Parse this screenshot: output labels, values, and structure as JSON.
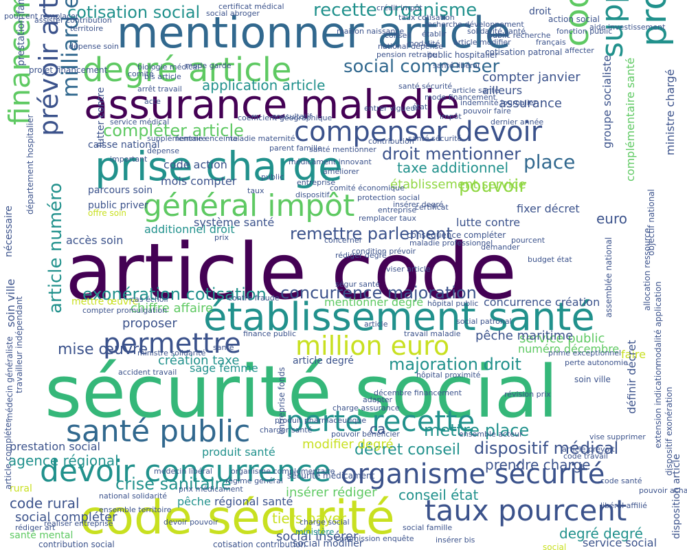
{
  "palette": {
    "dark_purple": "#440154",
    "indigo": "#3b528b",
    "blue": "#31688e",
    "teal": "#21918c",
    "green": "#35b779",
    "light_green": "#5ec962",
    "lime": "#90d743",
    "yellow_green": "#c8e020",
    "background": "#ffffff"
  },
  "words": [
    {
      "text": "article code",
      "color": "#440154"
    },
    {
      "text": "sécurité social",
      "color": "#35b779"
    },
    {
      "text": "mentionner article",
      "color": "#31688e"
    },
    {
      "text": "assurance maladie",
      "color": "#440154"
    },
    {
      "text": "code sécurité",
      "color": "#c8e020"
    },
    {
      "text": "établissement santé",
      "color": "#21918c"
    },
    {
      "text": "prise charge",
      "color": "#21918c"
    },
    {
      "text": "degré article",
      "color": "#5ec962"
    },
    {
      "text": "organisme sécurité",
      "color": "#3b528b"
    },
    {
      "text": "devoir concurrence",
      "color": "#21918c"
    },
    {
      "text": "santé public",
      "color": "#31688e"
    },
    {
      "text": "perte recette",
      "color": "#21918c"
    },
    {
      "text": "général impôt",
      "color": "#5ec962"
    },
    {
      "text": "compenser devoir",
      "color": "#3b528b"
    },
    {
      "text": "permettre",
      "color": "#3b528b"
    },
    {
      "text": "million euro",
      "color": "#c8e020"
    },
    {
      "text": "taux pourcent",
      "color": "#3b528b"
    },
    {
      "text": "professionnel santé",
      "color": "#21918c"
    },
    {
      "text": "code général",
      "color": "#5ec962"
    },
    {
      "text": "supprimer article",
      "color": "#21918c"
    },
    {
      "text": "financement sécurité",
      "color": "#5ec962"
    },
    {
      "text": "prévoir article",
      "color": "#3b528b"
    },
    {
      "text": "milliard euro",
      "color": "#31688e"
    },
    {
      "text": "mettre place",
      "color": "#21918c"
    },
    {
      "text": "exonération cotisation",
      "color": "#21918c"
    },
    {
      "text": "concurrence majoration",
      "color": "#3b528b"
    },
    {
      "text": "majoration droit",
      "color": "#21918c"
    },
    {
      "text": "dispositif médical",
      "color": "#3b528b"
    },
    {
      "text": "crise sanitaire",
      "color": "#21918c"
    },
    {
      "text": "agence régional",
      "color": "#21918c"
    },
    {
      "text": "recette organisme",
      "color": "#21918c"
    },
    {
      "text": "cotisation social",
      "color": "#21918c"
    },
    {
      "text": "social compenser",
      "color": "#31688e"
    },
    {
      "text": "remettre parlement",
      "color": "#3b528b"
    },
    {
      "text": "droit mentionner",
      "color": "#3b528b"
    },
    {
      "text": "taxe additionnel",
      "color": "#21918c"
    },
    {
      "text": "compléter article",
      "color": "#5ec962"
    },
    {
      "text": "pouvoir",
      "color": "#90d743"
    },
    {
      "text": "place",
      "color": "#31688e"
    },
    {
      "text": "application article",
      "color": "#21918c"
    },
    {
      "text": "mise œuvre",
      "color": "#3b528b"
    },
    {
      "text": "décret conseil",
      "color": "#21918c"
    },
    {
      "text": "article numéro",
      "color": "#21918c"
    },
    {
      "text": "modifier degré",
      "color": "#c8e020"
    },
    {
      "text": "prestation social",
      "color": "#3b528b"
    },
    {
      "text": "produit santé",
      "color": "#21918c"
    },
    {
      "text": "degré degré",
      "color": "#21918c"
    },
    {
      "text": "conseil état",
      "color": "#21918c"
    },
    {
      "text": "insérer rédiger",
      "color": "#5ec962"
    },
    {
      "text": "prendre charge",
      "color": "#3b528b"
    },
    {
      "text": "tiers payer",
      "color": "#c8e020"
    },
    {
      "text": "code rural",
      "color": "#3b528b"
    },
    {
      "text": "social compléter",
      "color": "#3b528b"
    },
    {
      "text": "social insérer",
      "color": "#3b528b"
    },
    {
      "text": "social modifier",
      "color": "#3b528b"
    },
    {
      "text": "santé mental",
      "color": "#5ec962"
    },
    {
      "text": "rural",
      "color": "#c8e020"
    },
    {
      "text": "pêche",
      "color": "#21918c"
    },
    {
      "text": "régional santé",
      "color": "#3b528b"
    },
    {
      "text": "création taxe",
      "color": "#21918c"
    },
    {
      "text": "sage femme",
      "color": "#21918c"
    },
    {
      "text": "proposer",
      "color": "#3b528b"
    },
    {
      "text": "chiffre affaire",
      "color": "#5ec962"
    },
    {
      "text": "service public",
      "color": "#5ec962"
    },
    {
      "text": "numéro décembre",
      "color": "#5ec962"
    },
    {
      "text": "mentionner degré",
      "color": "#5ec962"
    },
    {
      "text": "concurrence création",
      "color": "#3b528b"
    },
    {
      "text": "système santé",
      "color": "#3b528b"
    },
    {
      "text": "lutte contre",
      "color": "#3b528b"
    },
    {
      "text": "additionnel droit",
      "color": "#21918c"
    },
    {
      "text": "accès soin",
      "color": "#3b528b"
    },
    {
      "text": "fixer décret",
      "color": "#3b528b"
    },
    {
      "text": "établissement service",
      "color": "#90d743"
    },
    {
      "text": "mois compter",
      "color": "#3b528b"
    },
    {
      "text": "code action",
      "color": "#3b528b"
    },
    {
      "text": "caisse national",
      "color": "#3b528b"
    },
    {
      "text": "parcours soin",
      "color": "#3b528b"
    },
    {
      "text": "public priver",
      "color": "#3b528b"
    },
    {
      "text": "offre soin",
      "color": "#c8e020"
    },
    {
      "text": "compter janvier",
      "color": "#3b528b"
    },
    {
      "text": "ailleurs",
      "color": "#3b528b"
    },
    {
      "text": "assurance",
      "color": "#3b528b"
    },
    {
      "text": "faire",
      "color": "#c8e020"
    },
    {
      "text": "ca",
      "color": "#3b528b"
    },
    {
      "text": "euro",
      "color": "#3b528b"
    },
    {
      "text": "pêche maritime",
      "color": "#3b528b"
    },
    {
      "text": "nécessaire",
      "color": "#3b528b"
    },
    {
      "text": "prestation familial",
      "color": "#3b528b"
    },
    {
      "text": "ministre chargé",
      "color": "#3b528b"
    },
    {
      "text": "groupe socialiste",
      "color": "#3b528b"
    },
    {
      "text": "complémentaire santé",
      "color": "#5ec962"
    },
    {
      "text": "soin ville",
      "color": "#3b528b"
    },
    {
      "text": "article degré",
      "color": "#3b528b"
    },
    {
      "text": "mettre œuvre",
      "color": "#c8e020"
    },
    {
      "text": "sécurité médicament",
      "color": "#3b528b"
    },
    {
      "text": "cotisation contribution",
      "color": "#3b528b"
    },
    {
      "text": "contribution social",
      "color": "#3b528b"
    },
    {
      "text": "droit",
      "color": "#3b528b"
    },
    {
      "text": "social",
      "color": "#c8e020"
    },
    {
      "text": "ministère",
      "color": "#21918c"
    },
    {
      "text": "certificat médical",
      "color": "#3b528b"
    },
    {
      "text": "social abroger",
      "color": "#3b528b"
    },
    {
      "text": "crédit impôt",
      "color": "#3b528b"
    },
    {
      "text": "taux cotisation",
      "color": "#3b528b"
    },
    {
      "text": "recherche développement",
      "color": "#3b528b"
    },
    {
      "text": "action social",
      "color": "#3b528b"
    },
    {
      "text": "fonction public",
      "color": "#3b528b"
    },
    {
      "text": "territoire",
      "color": "#3b528b"
    },
    {
      "text": "dépense soin",
      "color": "#3b528b"
    },
    {
      "text": "maison naissance",
      "color": "#3b528b"
    },
    {
      "text": "public hospitalier",
      "color": "#3b528b"
    },
    {
      "text": "cotisation patronal",
      "color": "#3b528b"
    },
    {
      "text": "santé libéral",
      "color": "#3b528b"
    },
    {
      "text": "projet financement",
      "color": "#3b528b"
    },
    {
      "text": "arrêt travail",
      "color": "#3b528b"
    },
    {
      "text": "indemnité journalier",
      "color": "#3b528b"
    },
    {
      "text": "pouvoir faire",
      "color": "#3b528b"
    },
    {
      "text": "dernier année",
      "color": "#3b528b"
    },
    {
      "text": "service médical",
      "color": "#3b528b"
    },
    {
      "text": "femme enceinte",
      "color": "#3b528b"
    },
    {
      "text": "maladie maternité",
      "color": "#3b528b"
    },
    {
      "text": "parent famille",
      "color": "#3b528b"
    },
    {
      "text": "santé mentionner",
      "color": "#3b528b"
    },
    {
      "text": "médicament innovant",
      "color": "#3b528b"
    },
    {
      "text": "comité économique",
      "color": "#3b528b"
    },
    {
      "text": "entreprise",
      "color": "#3b528b"
    },
    {
      "text": "dispositif",
      "color": "#3b528b"
    },
    {
      "text": "protection social",
      "color": "#3b528b"
    },
    {
      "text": "insérer degré",
      "color": "#3b528b"
    },
    {
      "text": "remplacer taux",
      "color": "#3b528b"
    },
    {
      "text": "concerner",
      "color": "#3b528b"
    },
    {
      "text": "condition prévoir",
      "color": "#3b528b"
    },
    {
      "text": "maladie professionnel",
      "color": "#3b528b"
    },
    {
      "text": "conséquence compléter",
      "color": "#3b528b"
    },
    {
      "text": "viser article",
      "color": "#3b528b"
    },
    {
      "text": "budget état",
      "color": "#3b528b"
    },
    {
      "text": "rédiger degré",
      "color": "#3b528b"
    },
    {
      "text": "ségur santé",
      "color": "#3b528b"
    },
    {
      "text": "contre fraude",
      "color": "#3b528b"
    },
    {
      "text": "cas échoir",
      "color": "#3b528b"
    },
    {
      "text": "compter promulgation",
      "color": "#3b528b"
    },
    {
      "text": "hôpital public",
      "color": "#3b528b"
    },
    {
      "text": "social patronal",
      "color": "#3b528b"
    },
    {
      "text": "finance public",
      "color": "#3b528b"
    },
    {
      "text": "travail maladie",
      "color": "#3b528b"
    },
    {
      "text": "ministre solidarité",
      "color": "#3b528b"
    },
    {
      "text": "prime exceptionnel",
      "color": "#3b528b"
    },
    {
      "text": "perte autonomie",
      "color": "#3b528b"
    },
    {
      "text": "accident travail",
      "color": "#3b528b"
    },
    {
      "text": "hôpital proximité",
      "color": "#3b528b"
    },
    {
      "text": "décembre financement",
      "color": "#3b528b"
    },
    {
      "text": "révision prix",
      "color": "#3b528b"
    },
    {
      "text": "adapter",
      "color": "#3b528b"
    },
    {
      "text": "charge assurance",
      "color": "#3b528b"
    },
    {
      "text": "produit pharmaceutique",
      "color": "#3b528b"
    },
    {
      "text": "charger santé",
      "color": "#3b528b"
    },
    {
      "text": "pouvoir bénéficier",
      "color": "#3b528b"
    },
    {
      "text": "ensemble acteur",
      "color": "#3b528b"
    },
    {
      "text": "vise supprimer",
      "color": "#3b528b"
    },
    {
      "text": "article prévoit",
      "color": "#3b528b"
    },
    {
      "text": "code travail",
      "color": "#3b528b"
    },
    {
      "text": "médecin libéral",
      "color": "#3b528b"
    },
    {
      "text": "régime général",
      "color": "#3b528b"
    },
    {
      "text": "organisme complémentaire",
      "color": "#3b528b"
    },
    {
      "text": "prix médicament",
      "color": "#3b528b"
    },
    {
      "text": "ensemble territoire",
      "color": "#3b528b"
    },
    {
      "text": "national solidarité",
      "color": "#3b528b"
    },
    {
      "text": "lutter contre",
      "color": "#3b528b"
    },
    {
      "text": "devoir pouvoir",
      "color": "#3b528b"
    },
    {
      "text": "charge social",
      "color": "#3b528b"
    },
    {
      "text": "social famille",
      "color": "#3b528b"
    },
    {
      "text": "insérer bis",
      "color": "#3b528b"
    },
    {
      "text": "libéral affilié",
      "color": "#3b528b"
    },
    {
      "text": "service social",
      "color": "#3b528b"
    },
    {
      "text": "allocation familial",
      "color": "#3b528b"
    },
    {
      "text": "pouvoir achat",
      "color": "#3b528b"
    },
    {
      "text": "code santé",
      "color": "#3b528b"
    },
    {
      "text": "rédiger art",
      "color": "#3b528b"
    },
    {
      "text": "réaliser entreprise",
      "color": "#3b528b"
    },
    {
      "text": "disposition article",
      "color": "#3b528b"
    },
    {
      "text": "définir décret",
      "color": "#3b528b"
    },
    {
      "text": "commission enquête",
      "color": "#3b528b"
    },
    {
      "text": "article compléter",
      "color": "#3b528b"
    },
    {
      "text": "isolement contention",
      "color": "#3b528b"
    },
    {
      "text": "assemblée national",
      "color": "#3b528b"
    },
    {
      "text": "allocation ressource",
      "color": "#3b528b"
    },
    {
      "text": "entreprise pharmaceutique",
      "color": "#3b528b"
    },
    {
      "text": "extension indication",
      "color": "#3b528b"
    },
    {
      "text": "dispositif exonération",
      "color": "#3b528b"
    },
    {
      "text": "médecin généraliste",
      "color": "#3b528b"
    },
    {
      "text": "département hospitalier",
      "color": "#3b528b"
    },
    {
      "text": "travailleur indépendant",
      "color": "#3b528b"
    },
    {
      "text": "objectif national",
      "color": "#3b528b"
    },
    {
      "text": "modalité application",
      "color": "#3b528b"
    },
    {
      "text": "entreprise fonds",
      "color": "#3b528b"
    },
    {
      "text": "contribution",
      "color": "#3b528b"
    },
    {
      "text": "santé sécurité",
      "color": "#3b528b"
    },
    {
      "text": "certificat",
      "color": "#3b528b"
    },
    {
      "text": "conseil",
      "color": "#3b528b"
    },
    {
      "text": "pension retraite",
      "color": "#3b528b"
    },
    {
      "text": "modalité",
      "color": "#3b528b"
    },
    {
      "text": "public recherche",
      "color": "#3b528b"
    },
    {
      "text": "français",
      "color": "#3b528b"
    },
    {
      "text": "affecter",
      "color": "#3b528b"
    },
    {
      "text": "aide investissement",
      "color": "#3b528b"
    },
    {
      "text": "solidarité santé",
      "color": "#3b528b"
    },
    {
      "text": "article modifier",
      "color": "#3b528b"
    },
    {
      "text": "comité",
      "color": "#3b528b"
    },
    {
      "text": "biologie médical",
      "color": "#3b528b"
    },
    {
      "text": "mode garde",
      "color": "#3b528b"
    },
    {
      "text": "établir",
      "color": "#3b528b"
    },
    {
      "text": "important",
      "color": "#3b528b"
    },
    {
      "text": "national dépense",
      "color": "#3b528b"
    },
    {
      "text": "supplémentaire",
      "color": "#3b528b"
    },
    {
      "text": "dépense",
      "color": "#3b528b"
    },
    {
      "text": "pourcent remplacer",
      "color": "#3b528b"
    },
    {
      "text": "assister contribution",
      "color": "#3b528b"
    },
    {
      "text": "acte",
      "color": "#3b528b"
    },
    {
      "text": "bis article",
      "color": "#3b528b"
    },
    {
      "text": "santé sécurité",
      "color": "#3b528b"
    },
    {
      "text": "article santé",
      "color": "#3b528b"
    },
    {
      "text": "mode financement",
      "color": "#3b528b"
    },
    {
      "text": "entrer vigueur",
      "color": "#3b528b"
    },
    {
      "text": "coefficient géographique",
      "color": "#3b528b"
    },
    {
      "text": "consultatif",
      "color": "#3b528b"
    },
    {
      "text": "demander",
      "color": "#3b528b"
    },
    {
      "text": "pourcent",
      "color": "#3b528b"
    },
    {
      "text": "améliorer",
      "color": "#3b528b"
    },
    {
      "text": "entreprise",
      "color": "#3b528b"
    },
    {
      "text": "prix",
      "color": "#3b528b"
    },
    {
      "text": "taux",
      "color": "#3b528b"
    },
    {
      "text": "public",
      "color": "#3b528b"
    },
    {
      "text": "état",
      "color": "#3b528b"
    },
    {
      "text": "impôt",
      "color": "#3b528b"
    },
    {
      "text": "article",
      "color": "#3b528b"
    },
    {
      "text": "santé",
      "color": "#3b528b"
    },
    {
      "text": "soin",
      "color": "#3b528b"
    },
    {
      "text": "code",
      "color": "#3b528b"
    },
    {
      "text": "social",
      "color": "#3b528b"
    },
    {
      "text": "assurance",
      "color": "#3b528b"
    },
    {
      "text": "maladie",
      "color": "#3b528b"
    }
  ]
}
